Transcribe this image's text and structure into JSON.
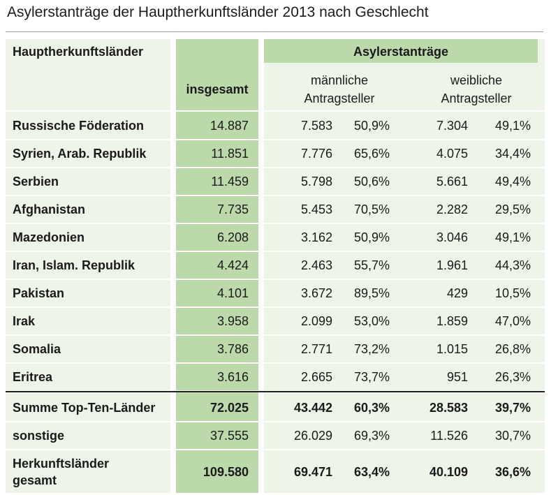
{
  "title": "Asylerstanträge der Hauptherkunftsländer 2013 nach Geschlecht",
  "colors": {
    "dark_green": "#bcd9ab",
    "light_green": "#eef5e8"
  },
  "header": {
    "country": "Hauptherkunftsländer",
    "asyl": "Asylerstanträge",
    "insgesamt": "insgesamt",
    "male_line1": "männliche",
    "male_line2": "Antragsteller",
    "female_line1": "weibliche",
    "female_line2": "Antragsteller"
  },
  "rows": [
    {
      "country": "Russische Föderation",
      "total": "14.887",
      "male": "7.583",
      "male_pct": "50,9%",
      "female": "7.304",
      "female_pct": "49,1%"
    },
    {
      "country": "Syrien, Arab. Republik",
      "total": "11.851",
      "male": "7.776",
      "male_pct": "65,6%",
      "female": "4.075",
      "female_pct": "34,4%"
    },
    {
      "country": "Serbien",
      "total": "11.459",
      "male": "5.798",
      "male_pct": "50,6%",
      "female": "5.661",
      "female_pct": "49,4%"
    },
    {
      "country": "Afghanistan",
      "total": "7.735",
      "male": "5.453",
      "male_pct": "70,5%",
      "female": "2.282",
      "female_pct": "29,5%"
    },
    {
      "country": "Mazedonien",
      "total": "6.208",
      "male": "3.162",
      "male_pct": "50,9%",
      "female": "3.046",
      "female_pct": "49,1%"
    },
    {
      "country": "Iran, Islam. Republik",
      "total": "4.424",
      "male": "2.463",
      "male_pct": "55,7%",
      "female": "1.961",
      "female_pct": "44,3%"
    },
    {
      "country": "Pakistan",
      "total": "4.101",
      "male": "3.672",
      "male_pct": "89,5%",
      "female": "429",
      "female_pct": "10,5%"
    },
    {
      "country": "Irak",
      "total": "3.958",
      "male": "2.099",
      "male_pct": "53,0%",
      "female": "1.859",
      "female_pct": "47,0%"
    },
    {
      "country": "Somalia",
      "total": "3.786",
      "male": "2.771",
      "male_pct": "73,2%",
      "female": "1.015",
      "female_pct": "26,8%"
    },
    {
      "country": "Eritrea",
      "total": "3.616",
      "male": "2.665",
      "male_pct": "73,7%",
      "female": "951",
      "female_pct": "26,3%"
    }
  ],
  "summary": [
    {
      "country": "Summe Top-Ten-Länder",
      "total": "72.025",
      "male": "43.442",
      "male_pct": "60,3%",
      "female": "28.583",
      "female_pct": "39,7%"
    },
    {
      "country": "sonstige",
      "total": "37.555",
      "male": "26.029",
      "male_pct": "69,3%",
      "female": "11.526",
      "female_pct": "30,7%"
    }
  ],
  "total": {
    "country_line1": "Herkunftsländer",
    "country_line2": "gesamt",
    "total": "109.580",
    "male": "69.471",
    "male_pct": "63,4%",
    "female": "40.109",
    "female_pct": "36,6%"
  },
  "chart_data": {
    "type": "table",
    "title": "Asylerstanträge der Hauptherkunftsländer 2013 nach Geschlecht",
    "columns": [
      "Hauptherkunftsländer",
      "insgesamt",
      "männliche Antragsteller",
      "männliche Antragsteller %",
      "weibliche Antragsteller",
      "weibliche Antragsteller %"
    ],
    "rows": [
      [
        "Russische Föderation",
        14887,
        7583,
        50.9,
        7304,
        49.1
      ],
      [
        "Syrien, Arab. Republik",
        11851,
        7776,
        65.6,
        4075,
        34.4
      ],
      [
        "Serbien",
        11459,
        5798,
        50.6,
        5661,
        49.4
      ],
      [
        "Afghanistan",
        7735,
        5453,
        70.5,
        2282,
        29.5
      ],
      [
        "Mazedonien",
        6208,
        3162,
        50.9,
        3046,
        49.1
      ],
      [
        "Iran, Islam. Republik",
        4424,
        2463,
        55.7,
        1961,
        44.3
      ],
      [
        "Pakistan",
        4101,
        3672,
        89.5,
        429,
        10.5
      ],
      [
        "Irak",
        3958,
        2099,
        53.0,
        1859,
        47.0
      ],
      [
        "Somalia",
        3786,
        2771,
        73.2,
        1015,
        26.8
      ],
      [
        "Eritrea",
        3616,
        2665,
        73.7,
        951,
        26.3
      ],
      [
        "Summe Top-Ten-Länder",
        72025,
        43442,
        60.3,
        28583,
        39.7
      ],
      [
        "sonstige",
        37555,
        26029,
        69.3,
        11526,
        30.7
      ],
      [
        "Herkunftsländer gesamt",
        109580,
        69471,
        63.4,
        40109,
        36.6
      ]
    ]
  }
}
